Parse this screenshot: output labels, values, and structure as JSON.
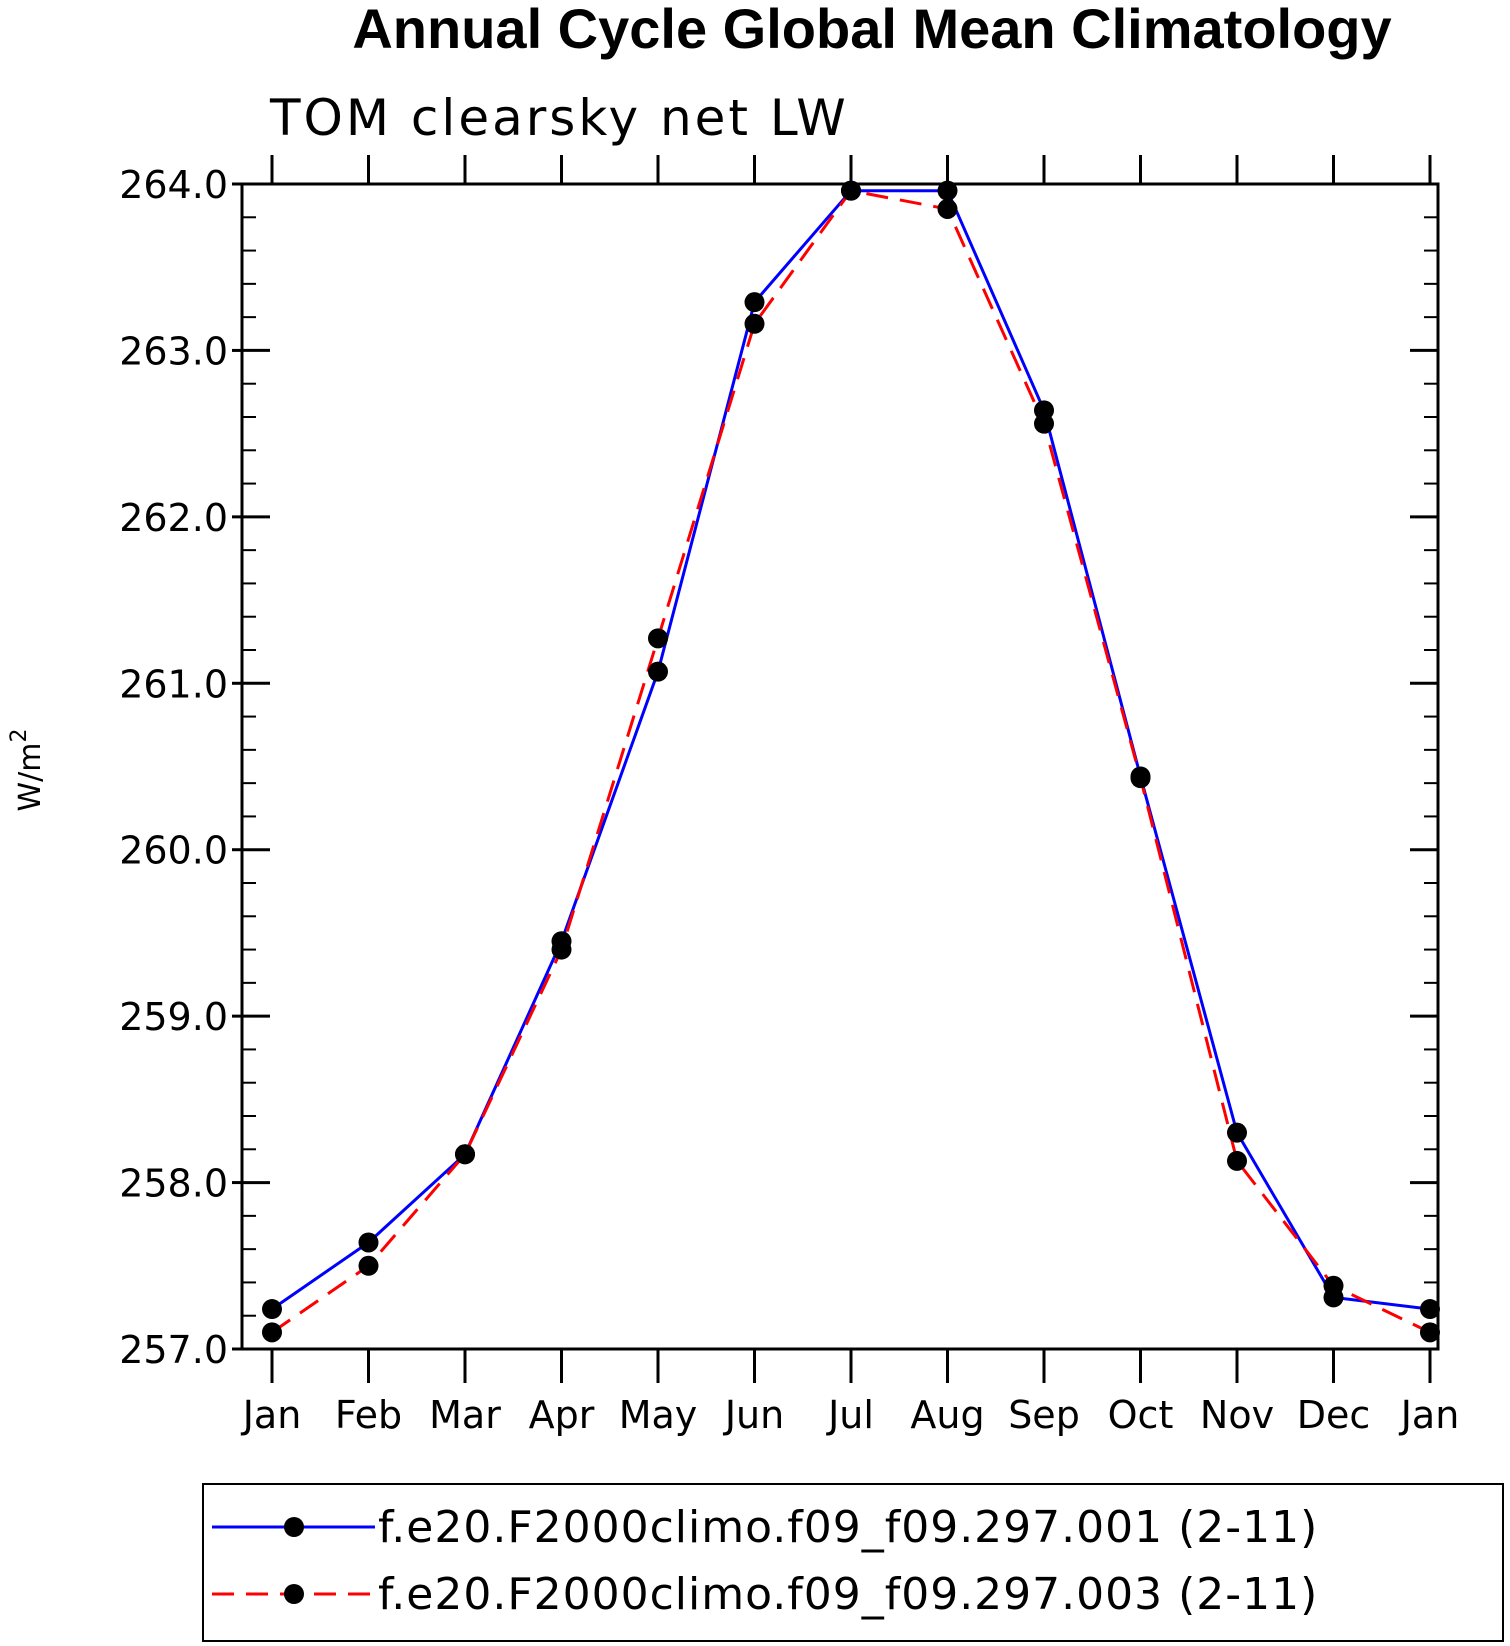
{
  "chart_data": {
    "type": "line",
    "title": "Annual Cycle Global Mean Climatology",
    "subtitle": "TOM clearsky net LW",
    "ylabel": "W/m",
    "ylabel_sup": "2",
    "categories": [
      "Jan",
      "Feb",
      "Mar",
      "Apr",
      "May",
      "Jun",
      "Jul",
      "Aug",
      "Sep",
      "Oct",
      "Nov",
      "Dec",
      "Jan"
    ],
    "ylim": [
      257.0,
      264.0
    ],
    "y_ticks": [
      "257.0",
      "258.0",
      "259.0",
      "260.0",
      "261.0",
      "262.0",
      "263.0",
      "264.0"
    ],
    "series": [
      {
        "name": "f.e20.F2000climo.f09_f09.297.001 (2-11)",
        "color": "#0000ff",
        "dash": "solid",
        "values": [
          257.24,
          257.64,
          258.17,
          259.45,
          261.07,
          263.29,
          263.96,
          263.96,
          262.64,
          260.44,
          258.3,
          257.31,
          257.24
        ]
      },
      {
        "name": "f.e20.F2000climo.f09_f09.297.003 (2-11)",
        "color": "#ff0000",
        "dash": "dashed",
        "values": [
          257.1,
          257.5,
          258.17,
          259.4,
          261.27,
          263.16,
          263.96,
          263.85,
          262.56,
          260.43,
          258.13,
          257.38,
          257.1
        ]
      }
    ],
    "legend_position": "bottom"
  }
}
